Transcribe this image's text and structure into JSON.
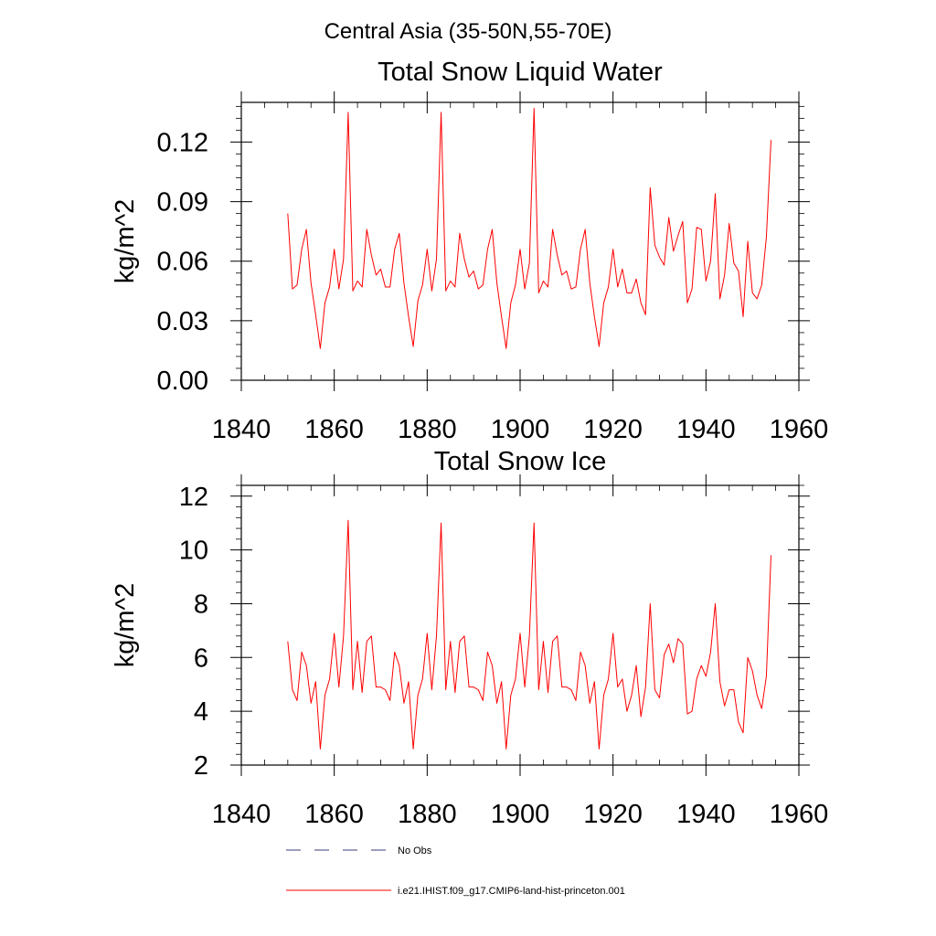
{
  "suptitle": "Central Asia (35-50N,55-70E)",
  "legend": [
    {
      "label": "No Obs",
      "color": "#3b3b7a",
      "style": "dashed"
    },
    {
      "label": "i.e21.IHIST.f09_g17.CMIP6-land-hist-princeton.001",
      "color": "#ff0000",
      "style": "solid"
    }
  ],
  "chart_data": [
    {
      "type": "line",
      "title": "Total Snow Liquid Water",
      "xlabel": "",
      "ylabel": "kg/m^2",
      "xlim": [
        1840,
        1960
      ],
      "ylim": [
        0,
        0.14
      ],
      "xticks": [
        1840,
        1860,
        1880,
        1900,
        1920,
        1940,
        1960
      ],
      "xtick_labels": [
        "1840",
        "1860",
        "1880",
        "1900",
        "1920",
        "1940",
        "1960"
      ],
      "yticks": [
        0,
        0.03,
        0.06,
        0.09,
        0.12
      ],
      "ytick_labels": [
        "0.00",
        "0.03",
        "0.06",
        "0.09",
        "0.12"
      ],
      "series": [
        {
          "name": "i.e21.IHIST.f09_g17.CMIP6-land-hist-princeton.001",
          "color": "#ff0000",
          "x": [
            1850,
            1851,
            1852,
            1853,
            1854,
            1855,
            1856,
            1857,
            1858,
            1859,
            1860,
            1861,
            1862,
            1863,
            1864,
            1865,
            1866,
            1867,
            1868,
            1869,
            1870,
            1871,
            1872,
            1873,
            1874,
            1875,
            1876,
            1877,
            1878,
            1879,
            1880,
            1881,
            1882,
            1883,
            1884,
            1885,
            1886,
            1887,
            1888,
            1889,
            1890,
            1891,
            1892,
            1893,
            1894,
            1895,
            1896,
            1897,
            1898,
            1899,
            1900,
            1901,
            1902,
            1903,
            1904,
            1905,
            1906,
            1907,
            1908,
            1909,
            1910,
            1911,
            1912,
            1913,
            1914,
            1915,
            1916,
            1917,
            1918,
            1919,
            1920,
            1921,
            1922,
            1923,
            1924,
            1925,
            1926,
            1927,
            1928,
            1929,
            1930,
            1931,
            1932,
            1933,
            1934,
            1935,
            1936,
            1937,
            1938,
            1939,
            1940,
            1941,
            1942,
            1943,
            1944,
            1945,
            1946,
            1947,
            1948,
            1949,
            1950,
            1951,
            1952,
            1953,
            1954
          ],
          "y": [
            0.084,
            0.046,
            0.048,
            0.066,
            0.076,
            0.049,
            0.033,
            0.016,
            0.039,
            0.047,
            0.066,
            0.046,
            0.061,
            0.135,
            0.045,
            0.05,
            0.047,
            0.076,
            0.063,
            0.053,
            0.056,
            0.047,
            0.047,
            0.066,
            0.074,
            0.049,
            0.032,
            0.017,
            0.04,
            0.048,
            0.066,
            0.045,
            0.061,
            0.135,
            0.045,
            0.05,
            0.047,
            0.074,
            0.061,
            0.052,
            0.055,
            0.046,
            0.048,
            0.066,
            0.076,
            0.049,
            0.032,
            0.016,
            0.039,
            0.048,
            0.066,
            0.046,
            0.059,
            0.137,
            0.044,
            0.05,
            0.047,
            0.076,
            0.063,
            0.053,
            0.055,
            0.046,
            0.047,
            0.066,
            0.076,
            0.049,
            0.032,
            0.017,
            0.039,
            0.047,
            0.066,
            0.047,
            0.056,
            0.044,
            0.044,
            0.051,
            0.039,
            0.033,
            0.097,
            0.068,
            0.062,
            0.058,
            0.082,
            0.065,
            0.073,
            0.08,
            0.039,
            0.046,
            0.077,
            0.076,
            0.05,
            0.06,
            0.094,
            0.041,
            0.053,
            0.079,
            0.059,
            0.055,
            0.032,
            0.07,
            0.044,
            0.041,
            0.048,
            0.072,
            0.121
          ]
        }
      ]
    },
    {
      "type": "line",
      "title": "Total Snow Ice",
      "xlabel": "",
      "ylabel": "kg/m^2",
      "xlim": [
        1840,
        1960
      ],
      "ylim": [
        2,
        12.4
      ],
      "xticks": [
        1840,
        1860,
        1880,
        1900,
        1920,
        1940,
        1960
      ],
      "xtick_labels": [
        "1840",
        "1860",
        "1880",
        "1900",
        "1920",
        "1940",
        "1960"
      ],
      "yticks": [
        2,
        4,
        6,
        8,
        10,
        12
      ],
      "ytick_labels": [
        "2",
        "4",
        "6",
        "8",
        "10",
        "12"
      ],
      "series": [
        {
          "name": "i.e21.IHIST.f09_g17.CMIP6-land-hist-princeton.001",
          "color": "#ff0000",
          "x": [
            1850,
            1851,
            1852,
            1853,
            1854,
            1855,
            1856,
            1857,
            1858,
            1859,
            1860,
            1861,
            1862,
            1863,
            1864,
            1865,
            1866,
            1867,
            1868,
            1869,
            1870,
            1871,
            1872,
            1873,
            1874,
            1875,
            1876,
            1877,
            1878,
            1879,
            1880,
            1881,
            1882,
            1883,
            1884,
            1885,
            1886,
            1887,
            1888,
            1889,
            1890,
            1891,
            1892,
            1893,
            1894,
            1895,
            1896,
            1897,
            1898,
            1899,
            1900,
            1901,
            1902,
            1903,
            1904,
            1905,
            1906,
            1907,
            1908,
            1909,
            1910,
            1911,
            1912,
            1913,
            1914,
            1915,
            1916,
            1917,
            1918,
            1919,
            1920,
            1921,
            1922,
            1923,
            1924,
            1925,
            1926,
            1927,
            1928,
            1929,
            1930,
            1931,
            1932,
            1933,
            1934,
            1935,
            1936,
            1937,
            1938,
            1939,
            1940,
            1941,
            1942,
            1943,
            1944,
            1945,
            1946,
            1947,
            1948,
            1949,
            1950,
            1951,
            1952,
            1953,
            1954
          ],
          "y": [
            6.6,
            4.8,
            4.4,
            6.2,
            5.7,
            4.3,
            5.1,
            2.6,
            4.6,
            5.2,
            6.9,
            4.9,
            6.8,
            11.1,
            4.8,
            6.6,
            4.7,
            6.6,
            6.8,
            4.9,
            4.9,
            4.8,
            4.4,
            6.2,
            5.7,
            4.3,
            5.1,
            2.6,
            4.6,
            5.2,
            6.9,
            4.8,
            6.8,
            11.0,
            4.8,
            6.6,
            4.7,
            6.6,
            6.8,
            4.9,
            4.9,
            4.8,
            4.4,
            6.2,
            5.7,
            4.3,
            5.1,
            2.6,
            4.6,
            5.2,
            6.9,
            4.9,
            6.8,
            11.0,
            4.8,
            6.6,
            4.7,
            6.6,
            6.8,
            4.9,
            4.9,
            4.8,
            4.4,
            6.2,
            5.7,
            4.3,
            5.1,
            2.6,
            4.6,
            5.2,
            6.9,
            4.9,
            5.2,
            4.0,
            4.6,
            5.7,
            3.8,
            4.9,
            8.0,
            4.8,
            4.5,
            6.1,
            6.5,
            5.8,
            6.7,
            6.5,
            3.9,
            4.0,
            5.2,
            5.7,
            5.3,
            6.2,
            8.0,
            5.1,
            4.2,
            4.8,
            4.8,
            3.6,
            3.2,
            6.0,
            5.5,
            4.6,
            4.1,
            5.3,
            9.8
          ]
        }
      ]
    }
  ]
}
